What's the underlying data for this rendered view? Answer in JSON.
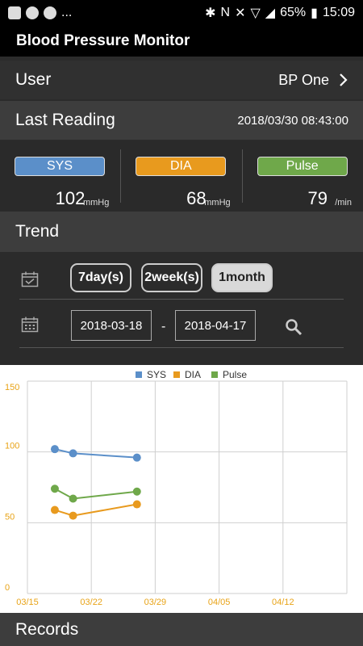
{
  "status_bar": {
    "battery": "65%",
    "time": "15:09",
    "more": "..."
  },
  "app": {
    "title": "Blood Pressure Monitor"
  },
  "user_row": {
    "label": "User",
    "value": "BP One"
  },
  "last_reading": {
    "label": "Last Reading",
    "datetime": "2018/03/30 08:43:00"
  },
  "readings": [
    {
      "label": "SYS",
      "value": "102",
      "unit": "mmHg",
      "color": "#5b8fc9"
    },
    {
      "label": "DIA",
      "value": "68",
      "unit": "mmHg",
      "color": "#e89a1e"
    },
    {
      "label": "Pulse",
      "value": "79",
      "unit": "/min",
      "color": "#6fa84a"
    }
  ],
  "trend": {
    "label": "Trend",
    "ranges": [
      "7day(s)",
      "2week(s)",
      "1month"
    ],
    "selected_range": "1month",
    "date_from": "2018-03-18",
    "date_separator": "-",
    "date_to": "2018-04-17"
  },
  "records": {
    "label": "Records"
  },
  "chart_data": {
    "type": "line",
    "x_tick_labels": [
      "03/15",
      "03/22",
      "03/29",
      "04/05",
      "04/12"
    ],
    "y_tick_labels": [
      "0",
      "50",
      "100",
      "150"
    ],
    "ylim": [
      0,
      150
    ],
    "legend_position": "top",
    "grid": true,
    "series": [
      {
        "name": "SYS",
        "color": "#5b8fc9",
        "x": [
          "2018-03-18",
          "2018-03-20",
          "2018-03-27"
        ],
        "values": [
          102,
          99,
          96
        ]
      },
      {
        "name": "DIA",
        "color": "#e89a1e",
        "x": [
          "2018-03-18",
          "2018-03-20",
          "2018-03-27"
        ],
        "values": [
          59,
          55,
          63
        ]
      },
      {
        "name": "Pulse",
        "color": "#6fa84a",
        "x": [
          "2018-03-18",
          "2018-03-20",
          "2018-03-27"
        ],
        "values": [
          74,
          67,
          72
        ]
      }
    ]
  }
}
